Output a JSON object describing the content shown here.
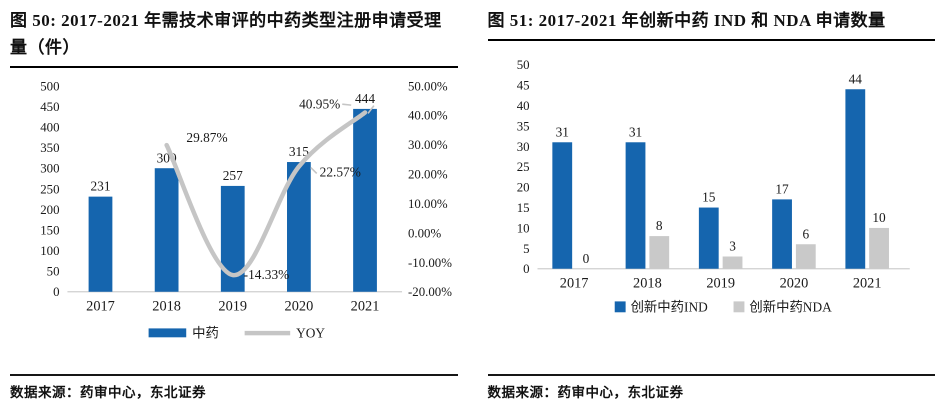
{
  "panels": [
    {
      "title": "图 50: 2017-2021 年需技术审评的中药类型注册申请受理量（件）",
      "source": "数据来源：药审中心，东北证券"
    },
    {
      "title": "图 51: 2017-2021 年创新中药 IND 和 NDA 申请数量",
      "source": "数据来源：药审中心，东北证券"
    }
  ],
  "chart_data": [
    {
      "type": "bar",
      "subtype": "bar-line-combo",
      "title": "图 50: 2017-2021 年需技术审评的中药类型注册申请受理量（件）",
      "categories": [
        "2017",
        "2018",
        "2019",
        "2020",
        "2021"
      ],
      "series": [
        {
          "name": "中药",
          "kind": "bar",
          "axis": "left",
          "color": "#1565AE",
          "values": [
            231,
            300,
            257,
            315,
            444
          ],
          "labels": [
            "231",
            "300",
            "257",
            "315",
            "444"
          ]
        },
        {
          "name": "YOY",
          "kind": "line",
          "axis": "right",
          "color": "#C5C5C5",
          "values": [
            null,
            29.87,
            -14.33,
            22.57,
            40.95
          ],
          "labels": [
            null,
            "29.87%",
            "-14.33%",
            "22.57%",
            "40.95%"
          ]
        }
      ],
      "left_axis": {
        "min": 0,
        "max": 500,
        "step": 50,
        "ticks": [
          "500",
          "450",
          "400",
          "350",
          "300",
          "250",
          "200",
          "150",
          "100",
          "50",
          "0"
        ]
      },
      "right_axis": {
        "min": -20,
        "max": 50,
        "step": 10,
        "ticks": [
          "50.00%",
          "40.00%",
          "30.00%",
          "20.00%",
          "10.00%",
          "0.00%",
          "-10.00%",
          "-20.00%"
        ]
      },
      "legend": [
        {
          "label": "中药",
          "swatch": "bar",
          "color": "#1565AE"
        },
        {
          "label": "YOY",
          "swatch": "line",
          "color": "#C5C5C5"
        }
      ],
      "legend_position": "bottom",
      "grid": false
    },
    {
      "type": "bar",
      "subtype": "grouped-bar",
      "title": "图 51: 2017-2021 年创新中药 IND 和 NDA 申请数量",
      "categories": [
        "2017",
        "2018",
        "2019",
        "2020",
        "2021"
      ],
      "series": [
        {
          "name": "创新中药IND",
          "color": "#1565AE",
          "values": [
            31,
            31,
            15,
            17,
            44
          ],
          "labels": [
            "31",
            "31",
            "15",
            "17",
            "44"
          ]
        },
        {
          "name": "创新中药NDA",
          "color": "#C9C9C9",
          "values": [
            0,
            8,
            3,
            6,
            10
          ],
          "labels": [
            "0",
            "8",
            "3",
            "6",
            "10"
          ]
        }
      ],
      "ylim": [
        0,
        50
      ],
      "step": 5,
      "yticks": [
        "50",
        "45",
        "40",
        "35",
        "30",
        "25",
        "20",
        "15",
        "10",
        "5",
        "0"
      ],
      "legend": [
        {
          "label": "创新中药IND",
          "swatch": "square",
          "color": "#1565AE"
        },
        {
          "label": "创新中药NDA",
          "swatch": "square",
          "color": "#C9C9C9"
        }
      ],
      "legend_position": "bottom",
      "grid": false
    }
  ],
  "colors": {
    "bar_blue": "#1565AE",
    "bar_gray": "#C9C9C9",
    "line_gray": "#C5C5C5",
    "axis_line": "#CFCFCF",
    "text": "#1A1A1A"
  }
}
